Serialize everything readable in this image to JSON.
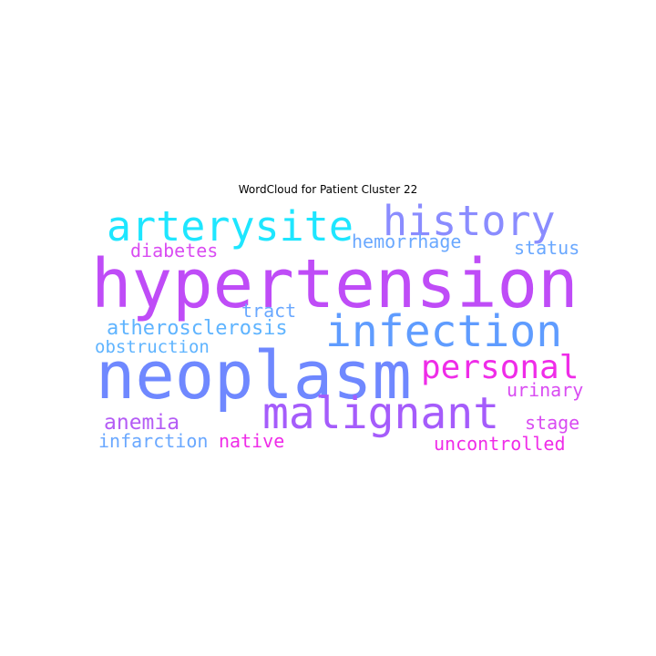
{
  "title": "WordCloud for Patient Cluster 22",
  "words": [
    {
      "text": "arterysite",
      "color": "#1ee6ff"
    },
    {
      "text": "history",
      "color": "#8a8cff"
    },
    {
      "text": "diabetes",
      "color": "#d94cf2"
    },
    {
      "text": "hemorrhage",
      "color": "#6aa8ff"
    },
    {
      "text": "status",
      "color": "#6aa8ff"
    },
    {
      "text": "hypertension",
      "color": "#bf4cf7"
    },
    {
      "text": "tract",
      "color": "#6aa8ff"
    },
    {
      "text": "atherosclerosis",
      "color": "#5fb4ff"
    },
    {
      "text": "infection",
      "color": "#5f9cff"
    },
    {
      "text": "obstruction",
      "color": "#5fb4ff"
    },
    {
      "text": "neoplasm",
      "color": "#6f88ff"
    },
    {
      "text": "personal",
      "color": "#ef2ce8"
    },
    {
      "text": "malignant",
      "color": "#a55cfb"
    },
    {
      "text": "urinary",
      "color": "#d94cf2"
    },
    {
      "text": "anemia",
      "color": "#b45cf5"
    },
    {
      "text": "stage",
      "color": "#d94cf2"
    },
    {
      "text": "infarction",
      "color": "#6aa8ff"
    },
    {
      "text": "native",
      "color": "#ef2ce8"
    },
    {
      "text": "uncontrolled",
      "color": "#ef2ce8"
    }
  ]
}
